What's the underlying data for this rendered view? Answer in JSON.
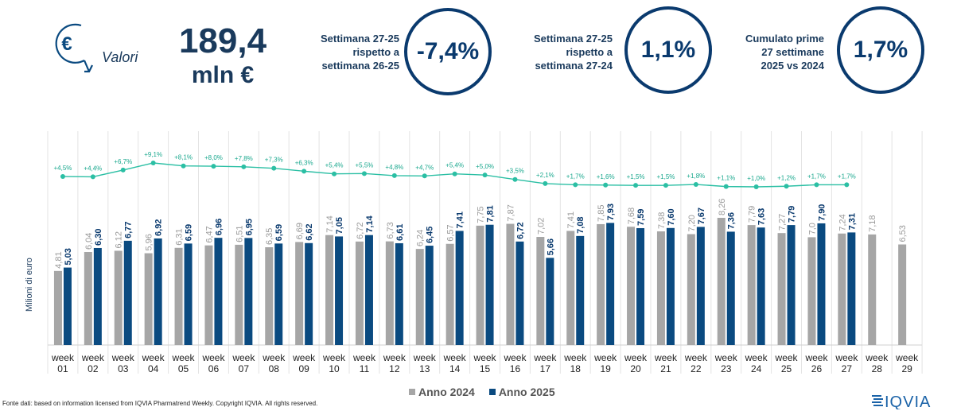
{
  "header": {
    "icon": "euro-down-arrow-icon",
    "valori_label": "Valori",
    "total_value": "189,4",
    "total_unit": "mln €",
    "kpis": [
      {
        "label_lines": [
          "Settimana 27-25",
          "rispetto a",
          "settimana 26-25"
        ],
        "value": "-7,4%"
      },
      {
        "label_lines": [
          "Settimana 27-25",
          "rispetto a",
          "settimana 27-24"
        ],
        "value": "1,1%"
      },
      {
        "label_lines": [
          "Cumulato prime",
          "27 settimane",
          "2025 vs 2024"
        ],
        "value": "1,7%"
      }
    ]
  },
  "chart_data": {
    "type": "bar",
    "ylabel": "Milioni di euro",
    "categories": [
      "week 01",
      "week 02",
      "week 03",
      "week 04",
      "week 05",
      "week 06",
      "week 07",
      "week 08",
      "week 09",
      "week 10",
      "week 11",
      "week 12",
      "week 13",
      "week 14",
      "week 15",
      "week 16",
      "week 17",
      "week 18",
      "week 19",
      "week 20",
      "week 21",
      "week 22",
      "week 23",
      "week 24",
      "week 25",
      "week 26",
      "week 27",
      "week 28",
      "week 29"
    ],
    "series": [
      {
        "name": "Anno 2024",
        "color": "#a6a6a6",
        "values": [
          4.81,
          6.04,
          6.12,
          5.96,
          6.31,
          6.47,
          6.51,
          6.35,
          6.69,
          7.14,
          6.72,
          6.73,
          6.24,
          6.57,
          7.75,
          7.87,
          7.02,
          7.41,
          7.85,
          7.68,
          7.38,
          7.2,
          8.26,
          7.79,
          7.27,
          7.0,
          7.24,
          7.18,
          6.53
        ],
        "labels": [
          "4,81",
          "6,04",
          "6,12",
          "5,96",
          "6,31",
          "6,47",
          "6,51",
          "6,35",
          "6,69",
          "7,14",
          "6,72",
          "6,73",
          "6,24",
          "6,57",
          "7,75",
          "7,87",
          "7,02",
          "7,41",
          "7,85",
          "7,68",
          "7,38",
          "7,20",
          "8,26",
          "7,79",
          "7,27",
          "7,0",
          "7,24",
          "7,18",
          "6,53"
        ]
      },
      {
        "name": "Anno 2025",
        "color": "#0a4a80",
        "values": [
          5.03,
          6.3,
          6.77,
          6.92,
          6.59,
          6.96,
          6.95,
          6.59,
          6.62,
          7.05,
          7.14,
          6.61,
          6.45,
          7.41,
          7.81,
          6.72,
          5.66,
          7.08,
          7.93,
          7.59,
          7.6,
          7.67,
          7.36,
          7.63,
          7.79,
          7.9,
          7.31,
          null,
          null
        ],
        "labels": [
          "5,03",
          "6,30",
          "6,77",
          "6,92",
          "6,59",
          "6,96",
          "6,95",
          "6,59",
          "6,62",
          "7,05",
          "7,14",
          "6,61",
          "6,45",
          "7,41",
          "7,81",
          "6,72",
          "5,66",
          "7,08",
          "7,93",
          "7,59",
          "7,60",
          "7,67",
          "7,36",
          "7,63",
          "7,79",
          "7,90",
          "7,31",
          null,
          null
        ]
      }
    ],
    "growth_line": {
      "color": "#2bbfa4",
      "values": [
        4.5,
        4.4,
        6.7,
        9.1,
        8.1,
        8.0,
        7.8,
        7.3,
        6.3,
        5.4,
        5.5,
        4.8,
        4.7,
        5.4,
        5.0,
        3.5,
        2.1,
        1.7,
        1.6,
        1.5,
        1.5,
        1.8,
        1.1,
        1.0,
        1.2,
        1.7,
        1.7
      ],
      "labels": [
        "+4,5%",
        "+4,4%",
        "+6,7%",
        "+9,1%",
        "+8,1%",
        "+8,0%",
        "+7,8%",
        "+7,3%",
        "+6,3%",
        "+5,4%",
        "+5,5%",
        "+4,8%",
        "+4,7%",
        "+5,4%",
        "+5,0%",
        "+3,5%",
        "+2,1%",
        "+1,7%",
        "+1,6%",
        "+1,5%",
        "+1,5%",
        "+1,8%",
        "+1,1%",
        "+1,0%",
        "+1,2%",
        "+1,7%",
        "+1,7%"
      ]
    },
    "legend_placement": "bottom-center"
  },
  "footer": {
    "source": "Fonte dati: based on information licensed from IQVIA Pharmatrend Weekly. Copyright IQVIA. All rights reserved.",
    "logo_text": "IQVIA"
  }
}
